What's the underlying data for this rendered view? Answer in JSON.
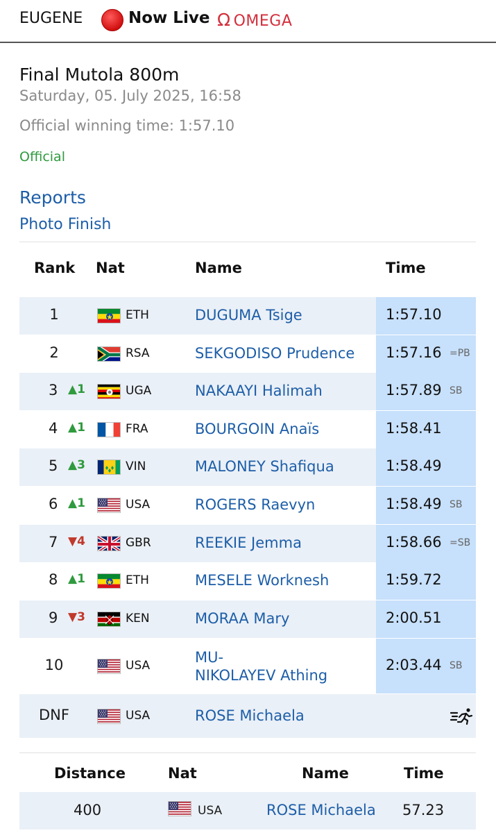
{
  "header": {
    "city": "EUGENE",
    "live_label": "Now Live",
    "sponsor": "OMEGA"
  },
  "event": {
    "title": "Final Mutola 800m",
    "date": "Saturday, 05. July 2025, 16:58",
    "winning_time": "Official winning time: 1:57.10",
    "status": "Official"
  },
  "links": {
    "reports": "Reports",
    "photo_finish": "Photo Finish"
  },
  "results": {
    "columns": {
      "rank": "Rank",
      "nat": "Nat",
      "name": "Name",
      "time": "Time"
    },
    "rows": [
      {
        "rank": "1",
        "move": "",
        "nat": "ETH",
        "name": "DUGUMA Tsige",
        "time": "1:57.10",
        "note": ""
      },
      {
        "rank": "2",
        "move": "",
        "nat": "RSA",
        "name": "SEKGODISO Prudence",
        "time": "1:57.16",
        "note": "=PB"
      },
      {
        "rank": "3",
        "move": "▲1",
        "nat": "UGA",
        "name": "NAKAAYI Halimah",
        "time": "1:57.89",
        "note": "SB"
      },
      {
        "rank": "4",
        "move": "▲1",
        "nat": "FRA",
        "name": "BOURGOIN Anaïs",
        "time": "1:58.41",
        "note": ""
      },
      {
        "rank": "5",
        "move": "▲3",
        "nat": "VIN",
        "name": "MALONEY Shafiqua",
        "time": "1:58.49",
        "note": ""
      },
      {
        "rank": "6",
        "move": "▲1",
        "nat": "USA",
        "name": "ROGERS Raevyn",
        "time": "1:58.49",
        "note": "SB"
      },
      {
        "rank": "7",
        "move": "▼4",
        "nat": "GBR",
        "name": "REEKIE Jemma",
        "time": "1:58.66",
        "note": "=SB"
      },
      {
        "rank": "8",
        "move": "▲1",
        "nat": "ETH",
        "name": "MESELE Worknesh",
        "time": "1:59.72",
        "note": ""
      },
      {
        "rank": "9",
        "move": "▼3",
        "nat": "KEN",
        "name": "MORAA Mary",
        "time": "2:00.51",
        "note": ""
      },
      {
        "rank": "10",
        "move": "",
        "nat": "USA",
        "name_line1": "MU-",
        "name_line2": "NIKOLAYEV Athing",
        "time": "2:03.44",
        "note": "SB"
      },
      {
        "rank": "DNF",
        "move": "",
        "nat": "USA",
        "name": "ROSE Michaela",
        "time": "",
        "note": ""
      }
    ]
  },
  "splits": {
    "columns": {
      "distance": "Distance",
      "nat": "Nat",
      "name": "Name",
      "time": "Time"
    },
    "rows": [
      {
        "distance": "400",
        "nat": "USA",
        "name": "ROSE Michaela",
        "time": "57.23"
      }
    ]
  },
  "colors": {
    "link_blue": "#1d5ea8",
    "official_green": "#2f9a3e",
    "row_stripe": "#eaf0f7",
    "time_highlight": "#c7e0fb",
    "up_arrow": "#2f9a3e",
    "down_arrow": "#c0392b",
    "live_red": "#d11010",
    "omega_red": "#d32f3c"
  },
  "icons": {
    "live": "live-dot-icon",
    "omega": "omega-logo-icon",
    "dnf": "runner-dnf-icon"
  }
}
